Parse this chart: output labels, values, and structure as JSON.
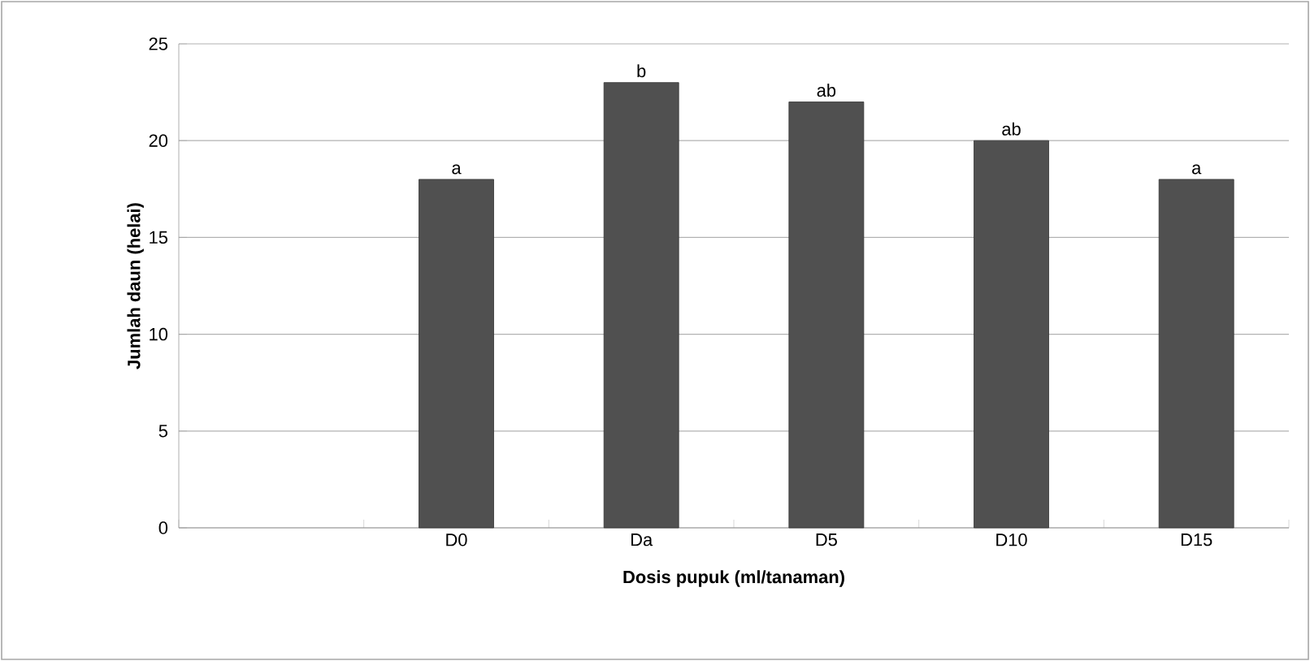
{
  "chart_data": {
    "type": "bar",
    "xlabel": "Dosis pupuk (ml/tanaman)",
    "ylabel": "Jumlah daun (helai)",
    "categories": [
      null,
      "D0",
      "Da",
      "D5",
      "D10",
      "D15"
    ],
    "values": [
      null,
      18,
      23,
      22,
      20,
      18
    ],
    "value_labels": [
      null,
      "a",
      "b",
      "ab",
      "ab",
      "a"
    ],
    "color": "#505050",
    "ylim": [
      0,
      25
    ],
    "yticks": [
      0,
      5,
      10,
      15,
      20,
      25
    ],
    "grid": "y"
  }
}
